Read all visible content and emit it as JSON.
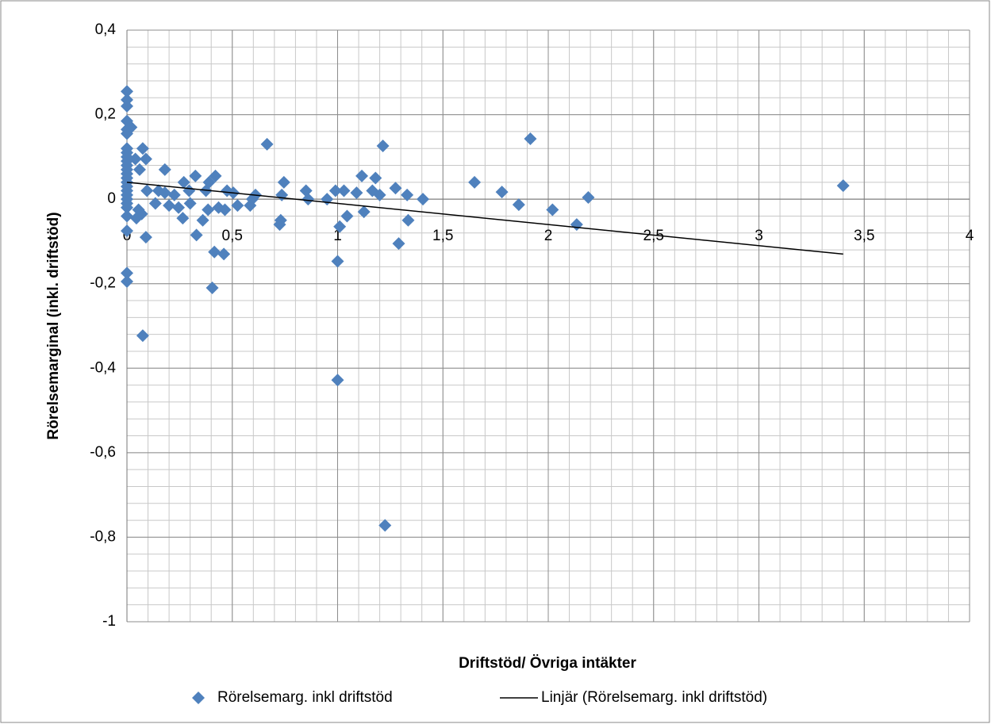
{
  "chart_data": {
    "type": "scatter",
    "xlabel": "Driftstöd/ Övriga intäkter",
    "ylabel": "Rörelsemarginal (inkl. driftstöd)",
    "xlim": [
      0,
      4
    ],
    "ylim": [
      -1,
      0.4
    ],
    "xticks": [
      0,
      {
        "value": 0.5,
        "label": "0,5"
      },
      1,
      {
        "value": 1.5,
        "label": "1,5"
      },
      2,
      {
        "value": 2.5,
        "label": "2,5"
      },
      3,
      {
        "value": 3.5,
        "label": "3,5"
      },
      4
    ],
    "yticks": [
      -1,
      {
        "value": -0.8,
        "label": "-0,8"
      },
      {
        "value": -0.6,
        "label": "-0,6"
      },
      {
        "value": -0.4,
        "label": "-0,4"
      },
      {
        "value": -0.2,
        "label": "-0,2"
      },
      0,
      {
        "value": 0.2,
        "label": "0,2"
      },
      {
        "value": 0.4,
        "label": "0,4"
      }
    ],
    "grid": true,
    "minor_grid": {
      "x": 0.1,
      "y": 0.04
    },
    "legend": "bottom",
    "series": [
      {
        "name": "Rörelsemarg. inkl driftstöd",
        "color": "#4f81bd",
        "marker": "diamond",
        "x": [
          0,
          0,
          0,
          0,
          0,
          0,
          0,
          0,
          0,
          0,
          0,
          0,
          0,
          0,
          0,
          0,
          0,
          0,
          0,
          0,
          0,
          0,
          0,
          0,
          0,
          0.02,
          0.04,
          0.06,
          0.075,
          0.09,
          0.07,
          0.045,
          0.055,
          0.09,
          0.075,
          0.095,
          0.135,
          0.15,
          0.18,
          0.18,
          0.2,
          0.225,
          0.245,
          0.265,
          0.27,
          0.295,
          0.3,
          0.325,
          0.33,
          0.36,
          0.375,
          0.385,
          0.39,
          0.405,
          0.415,
          0.42,
          0.435,
          0.46,
          0.465,
          0.475,
          0.505,
          0.525,
          0.585,
          0.595,
          0.61,
          0.665,
          0.725,
          0.73,
          0.735,
          0.745,
          0.85,
          0.86,
          0.95,
          0.99,
          1.0,
          1.0,
          1.01,
          1.03,
          1.045,
          1.09,
          1.115,
          1.125,
          1.165,
          1.18,
          1.2,
          1.215,
          1.225,
          1.275,
          1.29,
          1.33,
          1.335,
          1.405,
          1.65,
          1.78,
          1.86,
          1.915,
          2.02,
          2.135,
          2.19,
          3.4
        ],
        "values": [
          0.255,
          0.235,
          0.22,
          0.185,
          0.165,
          0.155,
          0.12,
          0.11,
          0.1,
          0.09,
          0.08,
          0.07,
          0.06,
          0.05,
          0.04,
          0.03,
          0.02,
          0.01,
          0,
          -0.01,
          -0.02,
          -0.04,
          -0.075,
          -0.175,
          -0.195,
          0.17,
          0.095,
          0.07,
          0.12,
          0.095,
          -0.035,
          -0.045,
          -0.025,
          -0.09,
          -0.323,
          0.02,
          -0.01,
          0.02,
          0.015,
          0.07,
          -0.015,
          0.01,
          -0.02,
          -0.045,
          0.04,
          0.02,
          -0.01,
          0.055,
          -0.085,
          -0.05,
          0.02,
          -0.025,
          0.04,
          -0.21,
          -0.125,
          0.055,
          -0.02,
          -0.13,
          -0.025,
          0.02,
          0.015,
          -0.015,
          -0.015,
          0,
          0.01,
          0.13,
          -0.06,
          -0.05,
          0.01,
          0.04,
          0.02,
          0,
          0,
          0.02,
          -0.147,
          -0.428,
          -0.065,
          0.02,
          -0.04,
          0.015,
          0.055,
          -0.03,
          0.02,
          0.05,
          0.01,
          0.126,
          -0.772,
          0.026,
          -0.105,
          0.01,
          -0.05,
          0,
          0.04,
          0.017,
          -0.013,
          0.143,
          -0.025,
          -0.06,
          0.004,
          0.032
        ]
      },
      {
        "name": "Linjär (Rörelsemarg. inkl driftstöd)",
        "color": "#000000",
        "kind": "trendline",
        "x": [
          0,
          3.4
        ],
        "values": [
          0.04,
          -0.13
        ]
      }
    ]
  }
}
